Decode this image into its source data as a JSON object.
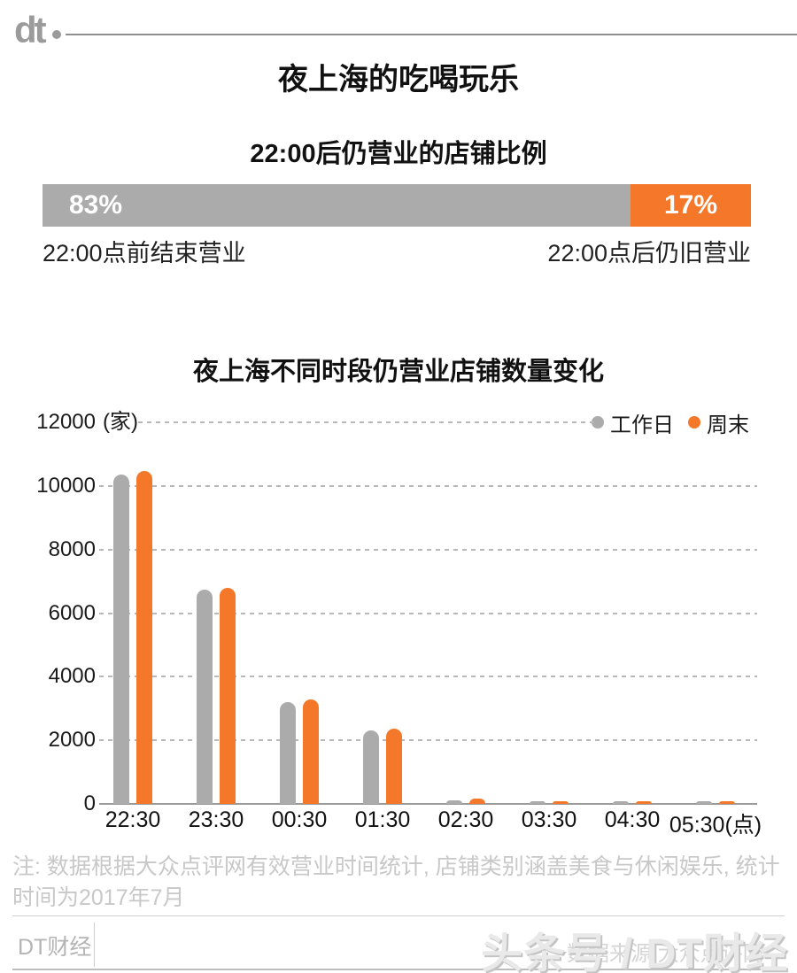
{
  "brand": {
    "logo": "dt",
    "footer_left": "DT财经",
    "watermark": "头条号 / DT财经",
    "source_text": "数据来源:大众点评网"
  },
  "page_title": "夜上海的吃喝玩乐",
  "colors": {
    "orange": "#F5782A",
    "gray": "#ABABAB",
    "grid": "#b8b8b8",
    "axis": "#9a9a9a"
  },
  "share_section": {
    "title": "22:00后仍营业的店铺比例",
    "segments": [
      {
        "pct": 83,
        "pct_label": "83%",
        "color": "#ABABAB"
      },
      {
        "pct": 17,
        "pct_label": "17%",
        "color": "#F5782A"
      }
    ],
    "left_label": "22:00点前结束营业",
    "right_label": "22:00点后仍旧营业"
  },
  "chart_data": {
    "type": "bar",
    "title": "夜上海不同时段仍营业店铺数量变化",
    "categories": [
      "22:30",
      "23:30",
      "00:30",
      "01:30",
      "02:30",
      "03:30",
      "04:30",
      "05:30"
    ],
    "x_axis_suffix": "(点)",
    "series": [
      {
        "name": "工作日",
        "color": "#ABABAB",
        "values": [
          10350,
          6740,
          3200,
          2300,
          100,
          40,
          40,
          40
        ]
      },
      {
        "name": "周末",
        "color": "#F5782A",
        "values": [
          10480,
          6800,
          3290,
          2380,
          160,
          60,
          60,
          60
        ]
      }
    ],
    "yticks": [
      0,
      2000,
      4000,
      6000,
      8000,
      10000,
      12000
    ],
    "ylim": [
      0,
      12000
    ],
    "y_unit": "(家)",
    "grid": "dashed horizontal",
    "legend_position": "top-right"
  },
  "footnote": "注: 数据根据大众点评网有效营业时间统计, 店铺类别涵盖美食与休闲娱乐, 统计时间为2017年7月"
}
